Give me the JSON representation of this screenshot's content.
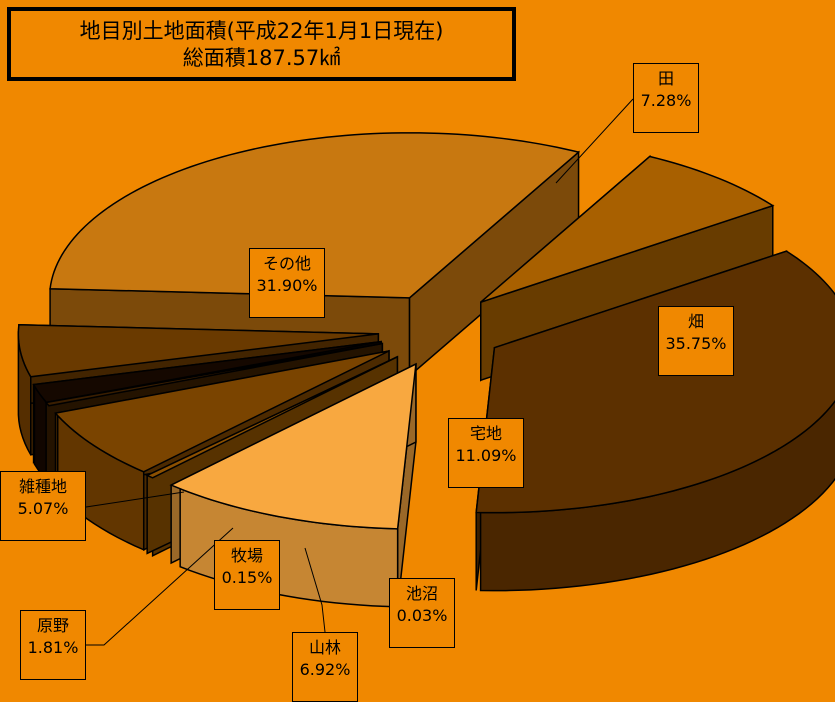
{
  "title": {
    "line1": "地目別土地面積(平成22年1月1日現在)",
    "line2": "総面積187.57㎢"
  },
  "chart_data": {
    "type": "pie",
    "title": "地目別土地面積(平成22年1月1日現在)",
    "subtitle": "総面積187.57㎢",
    "unit": "%",
    "slices": [
      {
        "name": "田",
        "value": 7.28,
        "label": "7.28%",
        "color": "#A86000"
      },
      {
        "name": "畑",
        "value": 35.75,
        "label": "35.75%",
        "color": "#5C3000"
      },
      {
        "name": "宅地",
        "value": 11.09,
        "label": "11.09%",
        "color": "#F8A840"
      },
      {
        "name": "池沼",
        "value": 0.03,
        "label": "0.03%",
        "color": "#8C5000"
      },
      {
        "name": "山林",
        "value": 6.92,
        "label": "6.92%",
        "color": "#7A4400"
      },
      {
        "name": "牧場",
        "value": 0.15,
        "label": "0.15%",
        "color": "#3A1E00"
      },
      {
        "name": "原野",
        "value": 1.81,
        "label": "1.81%",
        "color": "#150800"
      },
      {
        "name": "雑種地",
        "value": 5.07,
        "label": "5.07%",
        "color": "#6A3A00"
      },
      {
        "name": "その他",
        "value": 31.9,
        "label": "31.90%",
        "color": "#C87810"
      }
    ]
  }
}
